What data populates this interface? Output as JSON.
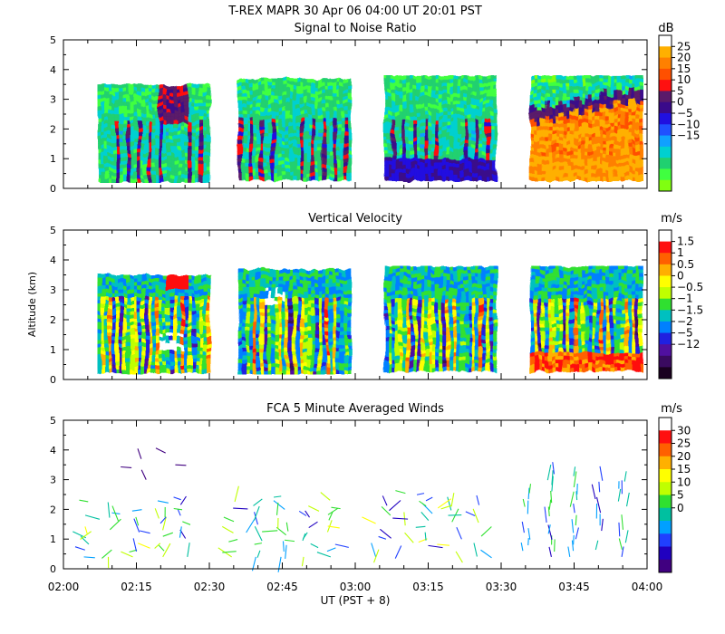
{
  "header": {
    "title": "T-REX   MAPR 30 Apr 06   04:00 UT   20:01   PST"
  },
  "x_axis": {
    "ticks": [
      "02:00",
      "02:15",
      "02:30",
      "02:45",
      "03:00",
      "03:15",
      "03:30",
      "03:45",
      "04:00"
    ],
    "label": "UT  (PST + 8)"
  },
  "y_axis": {
    "label": "Altitude (km)",
    "ticks": [
      "0",
      "1",
      "2",
      "3",
      "4",
      "5"
    ]
  },
  "chart_data": [
    {
      "type": "heatmap",
      "title": "Signal to Noise Ratio",
      "xlabel": "UT  (PST + 8)",
      "ylabel": "Altitude (km)",
      "xlim": [
        "02:00",
        "04:00"
      ],
      "ylim": [
        0,
        5
      ],
      "colorbar": {
        "unit": "dB",
        "ticks": [
          "25",
          "20",
          "15",
          "10",
          "5",
          "0",
          "−5",
          "−10",
          "−15"
        ],
        "colors": [
          "#ffffff",
          "#ffb000",
          "#ff8000",
          "#ff5000",
          "#ff1010",
          "#5a1a6a",
          "#3a0a8a",
          "#2010e0",
          "#2050ff",
          "#10a0ff",
          "#00d0d0",
          "#20d070",
          "#40ff40",
          "#80ff10"
        ]
      },
      "segments": [
        {
          "start": "02:07",
          "end": "02:30",
          "bottom_km": 0.3,
          "top_km": 3.5
        },
        {
          "start": "02:36",
          "end": "02:59",
          "bottom_km": 0.3,
          "top_km": 3.7
        },
        {
          "start": "03:06",
          "end": "03:29",
          "bottom_km": 0.3,
          "top_km": 3.8
        },
        {
          "start": "03:36",
          "end": "03:59",
          "bottom_km": 0.3,
          "top_km": 3.8
        }
      ]
    },
    {
      "type": "heatmap",
      "title": "Vertical Velocity",
      "xlabel": "UT  (PST + 8)",
      "ylabel": "Altitude (km)",
      "xlim": [
        "02:00",
        "04:00"
      ],
      "ylim": [
        0,
        5
      ],
      "colorbar": {
        "unit": "m/s",
        "ticks": [
          "1.5",
          "1",
          "0.5",
          "0",
          "−0.5",
          "−1",
          "−1.5",
          "−2",
          "−5",
          "−12"
        ],
        "colors": [
          "#ffffff",
          "#ff1010",
          "#ff6000",
          "#ffb000",
          "#ffff00",
          "#c0ff00",
          "#30e030",
          "#00c0c0",
          "#0080ff",
          "#2020e0",
          "#5010a0",
          "#3a0a60",
          "#1a0020"
        ]
      },
      "segments": [
        {
          "start": "02:07",
          "end": "02:30",
          "bottom_km": 0.3,
          "top_km": 3.5
        },
        {
          "start": "02:36",
          "end": "02:59",
          "bottom_km": 0.3,
          "top_km": 3.7
        },
        {
          "start": "03:06",
          "end": "03:29",
          "bottom_km": 0.3,
          "top_km": 3.8
        },
        {
          "start": "03:36",
          "end": "03:59",
          "bottom_km": 0.3,
          "top_km": 3.8
        }
      ]
    },
    {
      "type": "scatter",
      "title": "FCA 5 Minute Averaged Winds",
      "xlabel": "UT  (PST + 8)",
      "ylabel": "Altitude (km)",
      "xlim": [
        "02:00",
        "04:00"
      ],
      "ylim": [
        0,
        5
      ],
      "colorbar": {
        "unit": "m/s",
        "ticks": [
          "30",
          "25",
          "20",
          "15",
          "10",
          "5",
          "0"
        ],
        "colors": [
          "#ffffff",
          "#ff1010",
          "#ff6000",
          "#ffb000",
          "#ffff00",
          "#c0ff00",
          "#30e030",
          "#00c0a0",
          "#00a0ff",
          "#2040ff",
          "#2000c0",
          "#400080"
        ]
      },
      "profiles_ut": [
        "02:05",
        "02:10",
        "02:15",
        "02:20",
        "02:25",
        "02:35",
        "02:40",
        "02:45",
        "02:50",
        "02:55",
        "03:05",
        "03:10",
        "03:15",
        "03:20",
        "03:25",
        "03:35",
        "03:40",
        "03:45",
        "03:50",
        "03:55"
      ]
    }
  ]
}
